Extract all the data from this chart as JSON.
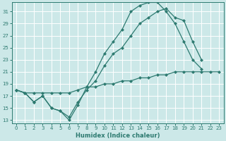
{
  "bg_color": "#cce8e8",
  "grid_color": "#aad4d4",
  "line_color": "#2d7a70",
  "xlabel": "Humidex (Indice chaleur)",
  "xlim": [
    -0.5,
    23.5
  ],
  "ylim": [
    12.5,
    32.5
  ],
  "xticks": [
    0,
    1,
    2,
    3,
    4,
    5,
    6,
    7,
    8,
    9,
    10,
    11,
    12,
    13,
    14,
    15,
    16,
    17,
    18,
    19,
    20,
    21,
    22,
    23
  ],
  "yticks": [
    13,
    15,
    17,
    19,
    21,
    23,
    25,
    27,
    29,
    31
  ],
  "series1": {
    "x": [
      0,
      1,
      2,
      3,
      4,
      5,
      6,
      7,
      8,
      9,
      10,
      11,
      12,
      13,
      14,
      15,
      16,
      17,
      18,
      19,
      20,
      21,
      22
    ],
    "y": [
      18,
      17.5,
      16,
      17,
      15,
      14.5,
      13,
      15.5,
      18.5,
      21,
      24,
      26,
      28,
      31,
      32,
      32.5,
      32.5,
      31,
      29,
      26,
      23,
      21.5,
      null
    ]
  },
  "series2": {
    "x": [
      0,
      1,
      2,
      3,
      4,
      5,
      6,
      7,
      8,
      9,
      10,
      11,
      12,
      13,
      14,
      15,
      16,
      17,
      18,
      19,
      20,
      21
    ],
    "y": [
      18,
      17.5,
      16,
      17,
      15,
      14.5,
      13.5,
      16,
      18,
      19.5,
      22,
      24,
      25,
      27,
      29,
      30,
      31,
      31.5,
      30,
      29.5,
      26,
      23
    ]
  },
  "series3": {
    "x": [
      0,
      1,
      2,
      3,
      4,
      5,
      6,
      7,
      8,
      9,
      10,
      11,
      12,
      13,
      14,
      15,
      16,
      17,
      18,
      19,
      20,
      21,
      22,
      23
    ],
    "y": [
      18,
      17.5,
      17.5,
      17.5,
      17.5,
      17.5,
      17.5,
      18,
      18.5,
      18.5,
      19,
      19,
      19.5,
      19.5,
      20,
      20,
      20.5,
      20.5,
      21,
      21,
      21,
      21,
      21,
      21
    ]
  }
}
